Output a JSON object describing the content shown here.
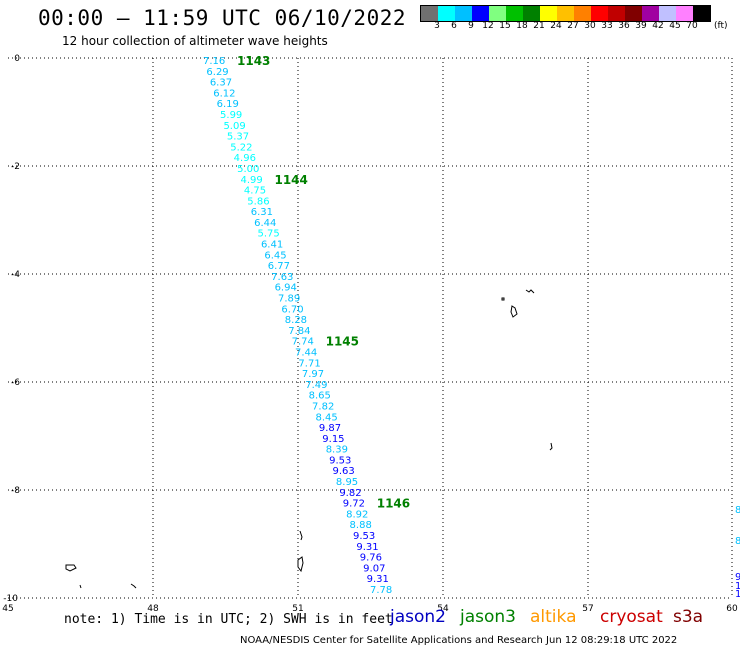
{
  "header": {
    "title": "00:00 – 11:59 UTC 06/10/2022",
    "subtitle": "12 hour collection of altimeter wave heights"
  },
  "legend": {
    "colors": [
      "#707070",
      "#00ffff",
      "#00c0ff",
      "#0000ff",
      "#80ff80",
      "#00c000",
      "#008000",
      "#ffff00",
      "#ffc000",
      "#ff8000",
      "#ff0000",
      "#c00000",
      "#800000",
      "#a000a0",
      "#c0c0ff",
      "#ff80ff",
      "#000000"
    ],
    "labels": [
      "3",
      "6",
      "9",
      "12",
      "15",
      "18",
      "21",
      "24",
      "27",
      "30",
      "33",
      "36",
      "39",
      "42",
      "45",
      "70"
    ],
    "unit": "(ft)"
  },
  "axes": {
    "x_ticks": [
      "45",
      "48",
      "51",
      "54",
      "57",
      "60"
    ],
    "y_ticks": [
      "0",
      "-2",
      "-4",
      "-6",
      "-8",
      "-10"
    ]
  },
  "passes": [
    {
      "label": "1143"
    },
    {
      "label": "1144"
    },
    {
      "label": "1145"
    },
    {
      "label": "1146"
    }
  ],
  "track": {
    "values": [
      "7.16",
      "6.29",
      "6.37",
      "6.12",
      "6.19",
      "5.99",
      "5.09",
      "5.37",
      "5.22",
      "4.96",
      "5.00",
      "4.99",
      "4.75",
      "5.86",
      "6.31",
      "6.44",
      "5.75",
      "6.41",
      "6.45",
      "6.77",
      "7.63",
      "6.94",
      "7.89",
      "6.70",
      "8.28",
      "7.84",
      "7.74",
      "7.44",
      "7.71",
      "7.97",
      "7.49",
      "8.65",
      "7.82",
      "8.45",
      "9.87",
      "9.15",
      "8.39",
      "9.53",
      "9.63",
      "8.95",
      "9.82",
      "9.72",
      "8.92",
      "8.88",
      "9.53",
      "9.31",
      "9.76",
      "9.07",
      "9.31",
      "7.78"
    ]
  },
  "edge_values": [
    "8",
    "8",
    "9",
    "10",
    "10"
  ],
  "footer": {
    "note": "note: 1) Time is in UTC; 2) SWH is in feet",
    "satellites": [
      {
        "name": "jason2",
        "color": "#0000c0"
      },
      {
        "name": "jason3",
        "color": "#008000"
      },
      {
        "name": "altika",
        "color": "#ff9900"
      },
      {
        "name": "cryosat",
        "color": "#cc0000"
      },
      {
        "name": "s3a",
        "color": "#800000"
      }
    ],
    "credit": "NOAA/NESDIS Center for Satellite Applications and Research    Jun 12 08:29:18 UTC 2022"
  }
}
